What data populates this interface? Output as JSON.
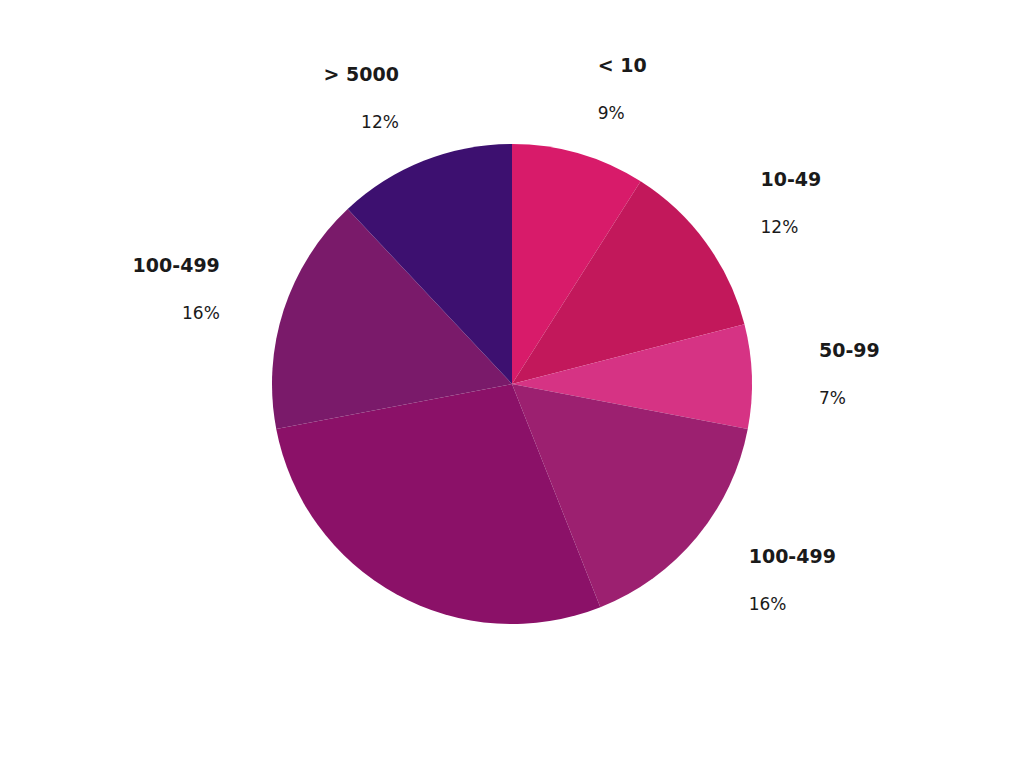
{
  "chart_data": {
    "type": "pie",
    "categories": [
      "< 10",
      "10-49",
      "50-99",
      "100-499",
      null,
      "100-499",
      "> 5000"
    ],
    "values": [
      9,
      12,
      7,
      16,
      28,
      16,
      12
    ],
    "value_labels": [
      "9%",
      "12%",
      "7%",
      "16%",
      null,
      "16%",
      "12%"
    ],
    "colors": [
      "#d81b6a",
      "#c2185b",
      "#d63384",
      "#9c2070",
      "#8b1168",
      "#7a1a6a",
      "#3d1070"
    ],
    "data_labels": true
  }
}
